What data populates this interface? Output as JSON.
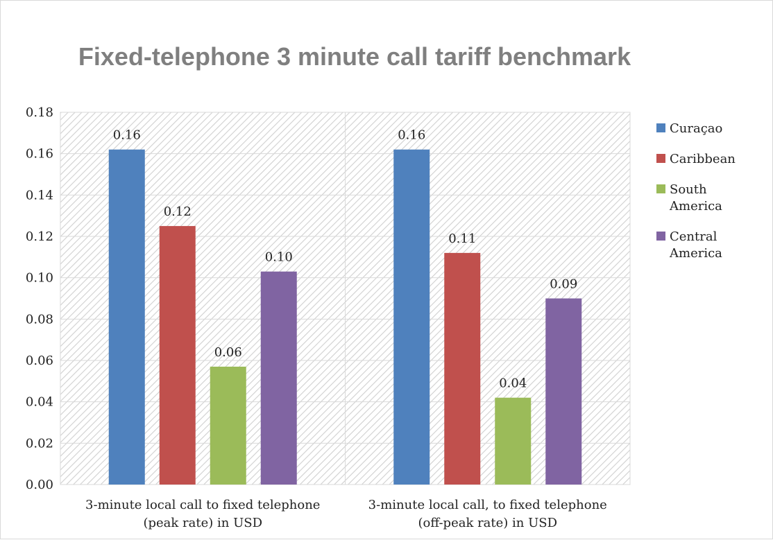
{
  "chart_data": {
    "type": "bar",
    "title": "Fixed-telephone 3 minute call tariff benchmark",
    "categories": [
      [
        "3-minute local call to fixed telephone",
        "(peak rate) in USD"
      ],
      [
        "3-minute local call, to fixed telephone",
        "(off-peak rate) in USD"
      ]
    ],
    "series": [
      {
        "name": [
          "Curaçao"
        ],
        "color": "#4f81bd",
        "values": [
          0.162,
          0.162
        ],
        "labels": [
          "0.16",
          "0.16"
        ]
      },
      {
        "name": [
          "Caribbean"
        ],
        "color": "#c0504d",
        "values": [
          0.125,
          0.112
        ],
        "labels": [
          "0.12",
          "0.11"
        ]
      },
      {
        "name": [
          "South",
          "America"
        ],
        "color": "#9bbb59",
        "values": [
          0.057,
          0.042
        ],
        "labels": [
          "0.06",
          "0.04"
        ]
      },
      {
        "name": [
          "Central",
          "America"
        ],
        "color": "#8064a2",
        "values": [
          0.103,
          0.09
        ],
        "labels": [
          "0.10",
          "0.09"
        ]
      }
    ],
    "ylim": [
      0,
      0.18
    ],
    "yticks": [
      "0.00",
      "0.02",
      "0.04",
      "0.06",
      "0.08",
      "0.10",
      "0.12",
      "0.14",
      "0.16",
      "0.18"
    ],
    "grid": true,
    "legend_position": "right"
  }
}
